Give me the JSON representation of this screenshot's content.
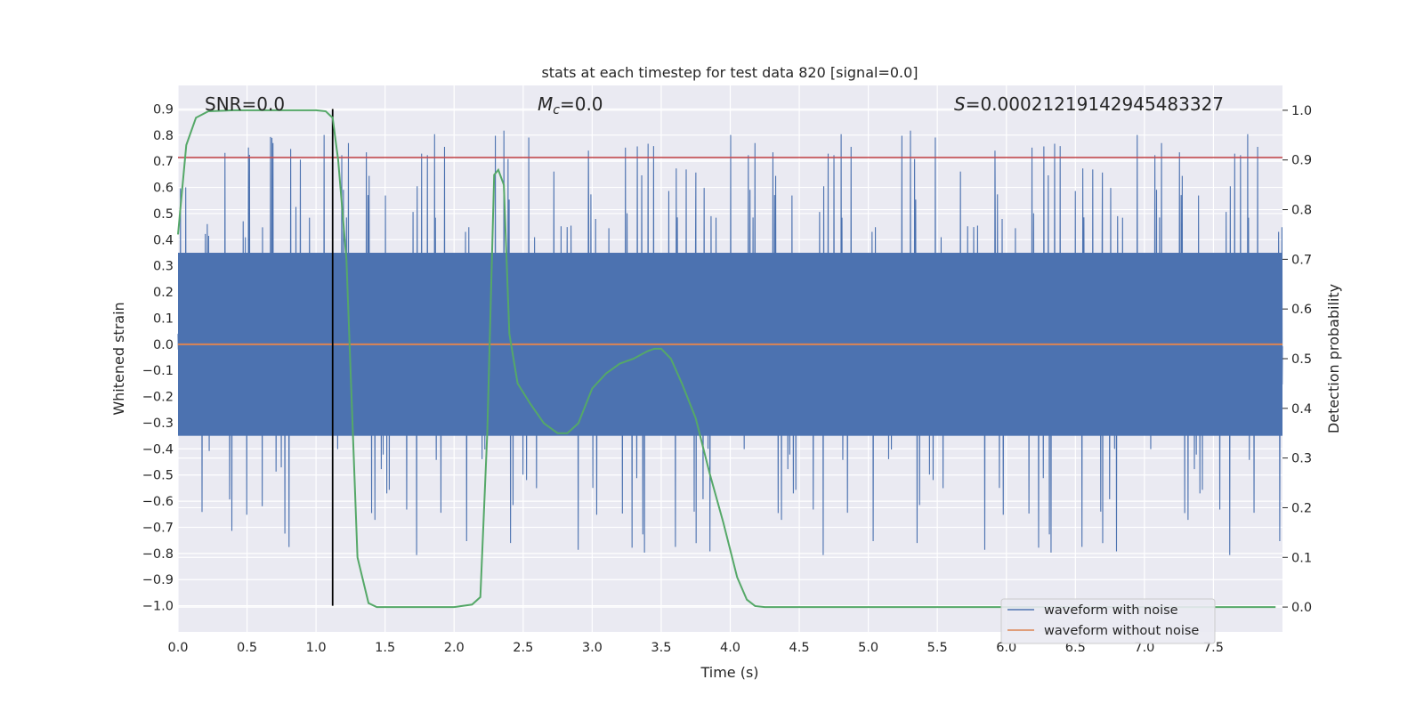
{
  "chart_data": {
    "type": "line",
    "title": "stats at each timestep for test data 820 [signal=0.0]",
    "xlabel": "Time (s)",
    "ylabel": "Whitened strain",
    "y2label": "Detection probability",
    "xlim": [
      0.0,
      8.0
    ],
    "ylim": [
      -1.1,
      0.99
    ],
    "y2lim": [
      -0.05,
      1.05
    ],
    "xticks": [
      0.0,
      0.5,
      1.0,
      1.5,
      2.0,
      2.5,
      3.0,
      3.5,
      4.0,
      4.5,
      5.0,
      5.5,
      6.0,
      6.5,
      7.0,
      7.5
    ],
    "yticks": [
      -1.0,
      -0.9,
      -0.8,
      -0.7,
      -0.6,
      -0.5,
      -0.4,
      -0.3,
      -0.2,
      -0.1,
      0.0,
      0.1,
      0.2,
      0.3,
      0.4,
      0.5,
      0.6,
      0.7,
      0.8,
      0.9
    ],
    "y2ticks": [
      0.0,
      0.1,
      0.2,
      0.3,
      0.4,
      0.5,
      0.6,
      0.7,
      0.8,
      0.9,
      1.0
    ],
    "grid": true,
    "legend_position": "lower-right",
    "annotations": {
      "snr": "SNR=0.0",
      "mc_symbol": "M",
      "mc_subscript": "c",
      "mc_value": "=0.0",
      "s_symbol": "S",
      "s_value": "=0.0002121914294548332​7"
    },
    "threshold_y": 0.905,
    "threshold_color": "#c44e52",
    "marker_x": 1.12,
    "marker_range": [
      -1.0,
      0.9
    ],
    "series": [
      {
        "name": "waveform with noise",
        "color": "#4c72b0",
        "axis": "left",
        "noise": {
          "envelope": 0.35,
          "spike_max": 0.9,
          "spike_min": -0.97
        }
      },
      {
        "name": "waveform without noise",
        "color": "#dd8452",
        "axis": "left",
        "constant": 0.0
      },
      {
        "name": "detection probability",
        "color": "#55a868",
        "axis": "right",
        "x": [
          0.0,
          0.06,
          0.13,
          0.22,
          0.4,
          0.7,
          1.0,
          1.07,
          1.1,
          1.12,
          1.16,
          1.22,
          1.3,
          1.38,
          1.44,
          1.6,
          2.0,
          2.13,
          2.19,
          2.24,
          2.29,
          2.32,
          2.36,
          2.4,
          2.46,
          2.55,
          2.65,
          2.75,
          2.82,
          2.9,
          3.0,
          3.1,
          3.2,
          3.3,
          3.4,
          3.45,
          3.5,
          3.57,
          3.65,
          3.75,
          3.85,
          3.95,
          4.05,
          4.12,
          4.18,
          4.25,
          5.0,
          6.0,
          7.0,
          7.95
        ],
        "y": [
          0.75,
          0.93,
          0.985,
          0.998,
          1.0,
          1.0,
          1.0,
          0.998,
          0.99,
          0.985,
          0.9,
          0.7,
          0.1,
          0.008,
          0.0,
          0.0,
          0.0,
          0.005,
          0.02,
          0.35,
          0.87,
          0.88,
          0.85,
          0.55,
          0.45,
          0.41,
          0.37,
          0.35,
          0.35,
          0.37,
          0.44,
          0.47,
          0.49,
          0.5,
          0.515,
          0.52,
          0.52,
          0.5,
          0.45,
          0.38,
          0.27,
          0.17,
          0.06,
          0.015,
          0.002,
          0.0,
          0.0,
          0.0,
          0.0,
          0.0
        ]
      }
    ]
  }
}
